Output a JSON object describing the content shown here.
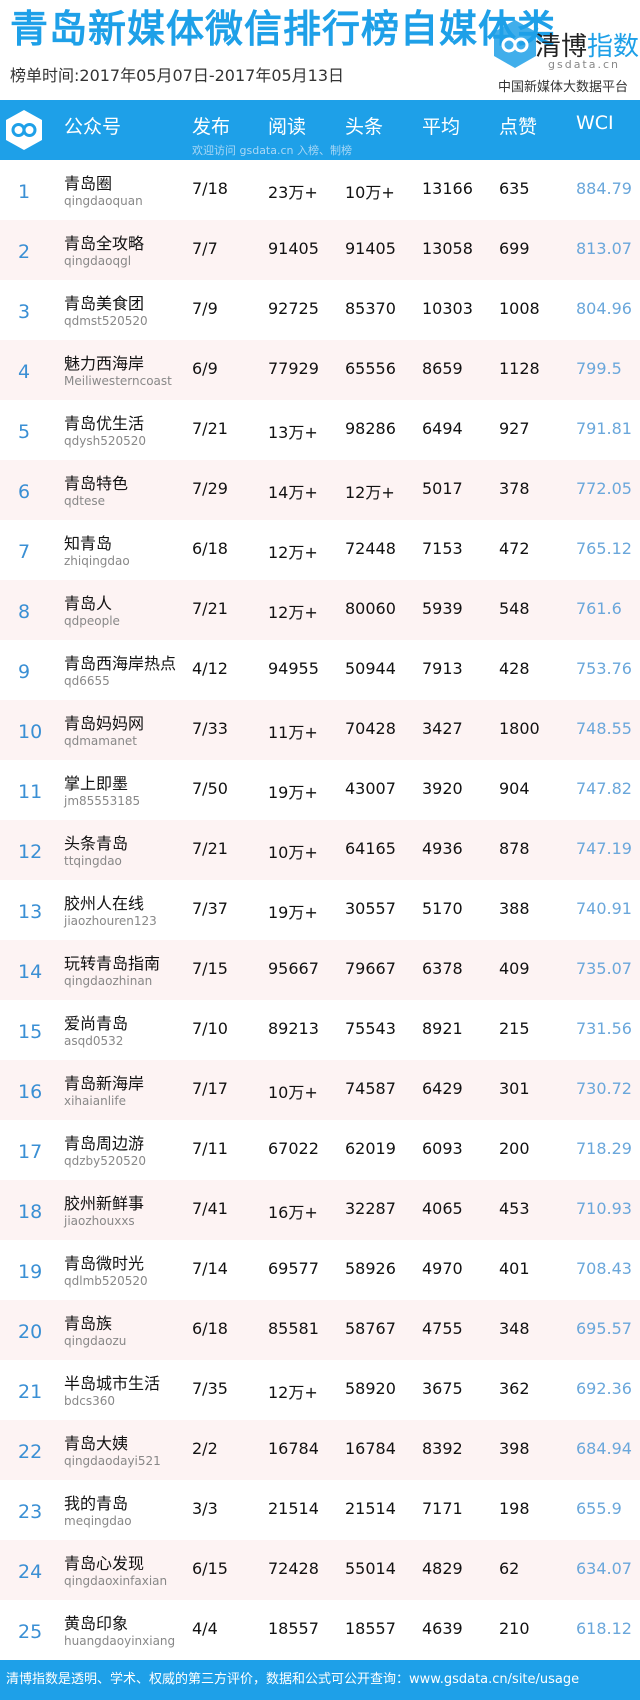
{
  "header": {
    "title": "青岛新媒体微信排行榜自媒体类",
    "date_range": "榜单时间:2017年05月07日-2017年05月13日",
    "brand_name_part1": "清博",
    "brand_name_part2": "指数",
    "brand_domain": "gsdata.cn",
    "brand_sub": "中国新媒体大数据平台"
  },
  "table": {
    "headers": [
      "公众号",
      "发布",
      "阅读",
      "头条",
      "平均",
      "点赞",
      "WCI"
    ],
    "watermark": "欢迎访问 gsdata.cn 入榜、制榜",
    "rows": [
      {
        "rank": "1",
        "name": "青岛圈",
        "id": "qingdaoquan",
        "publish": "7/18",
        "read": "23万+",
        "headline": "10万+",
        "avg": "13166",
        "likes": "635",
        "wci": "884.79"
      },
      {
        "rank": "2",
        "name": "青岛全攻略",
        "id": "qingdaoqgl",
        "publish": "7/7",
        "read": "91405",
        "headline": "91405",
        "avg": "13058",
        "likes": "699",
        "wci": "813.07"
      },
      {
        "rank": "3",
        "name": "青岛美食团",
        "id": "qdmst520520",
        "publish": "7/9",
        "read": "92725",
        "headline": "85370",
        "avg": "10303",
        "likes": "1008",
        "wci": "804.96"
      },
      {
        "rank": "4",
        "name": "魅力西海岸",
        "id": "Meiliwesterncoast",
        "publish": "6/9",
        "read": "77929",
        "headline": "65556",
        "avg": "8659",
        "likes": "1128",
        "wci": "799.5"
      },
      {
        "rank": "5",
        "name": "青岛优生活",
        "id": "qdysh520520",
        "publish": "7/21",
        "read": "13万+",
        "headline": "98286",
        "avg": "6494",
        "likes": "927",
        "wci": "791.81"
      },
      {
        "rank": "6",
        "name": "青岛特色",
        "id": "qdtese",
        "publish": "7/29",
        "read": "14万+",
        "headline": "12万+",
        "avg": "5017",
        "likes": "378",
        "wci": "772.05"
      },
      {
        "rank": "7",
        "name": "知青岛",
        "id": "zhiqingdao",
        "publish": "6/18",
        "read": "12万+",
        "headline": "72448",
        "avg": "7153",
        "likes": "472",
        "wci": "765.12"
      },
      {
        "rank": "8",
        "name": "青岛人",
        "id": "qdpeople",
        "publish": "7/21",
        "read": "12万+",
        "headline": "80060",
        "avg": "5939",
        "likes": "548",
        "wci": "761.6"
      },
      {
        "rank": "9",
        "name": "青岛西海岸热点",
        "id": "qd6655",
        "publish": "4/12",
        "read": "94955",
        "headline": "50944",
        "avg": "7913",
        "likes": "428",
        "wci": "753.76"
      },
      {
        "rank": "10",
        "name": "青岛妈妈网",
        "id": "qdmamanet",
        "publish": "7/33",
        "read": "11万+",
        "headline": "70428",
        "avg": "3427",
        "likes": "1800",
        "wci": "748.55"
      },
      {
        "rank": "11",
        "name": "掌上即墨",
        "id": "jm85553185",
        "publish": "7/50",
        "read": "19万+",
        "headline": "43007",
        "avg": "3920",
        "likes": "904",
        "wci": "747.82"
      },
      {
        "rank": "12",
        "name": "头条青岛",
        "id": "ttqingdao",
        "publish": "7/21",
        "read": "10万+",
        "headline": "64165",
        "avg": "4936",
        "likes": "878",
        "wci": "747.19"
      },
      {
        "rank": "13",
        "name": "胶州人在线",
        "id": "jiaozhouren123",
        "publish": "7/37",
        "read": "19万+",
        "headline": "30557",
        "avg": "5170",
        "likes": "388",
        "wci": "740.91"
      },
      {
        "rank": "14",
        "name": "玩转青岛指南",
        "id": "qingdaozhinan",
        "publish": "7/15",
        "read": "95667",
        "headline": "79667",
        "avg": "6378",
        "likes": "409",
        "wci": "735.07"
      },
      {
        "rank": "15",
        "name": "爱尚青岛",
        "id": "asqd0532",
        "publish": "7/10",
        "read": "89213",
        "headline": "75543",
        "avg": "8921",
        "likes": "215",
        "wci": "731.56"
      },
      {
        "rank": "16",
        "name": "青岛新海岸",
        "id": "xihaianlife",
        "publish": "7/17",
        "read": "10万+",
        "headline": "74587",
        "avg": "6429",
        "likes": "301",
        "wci": "730.72"
      },
      {
        "rank": "17",
        "name": "青岛周边游",
        "id": "qdzby520520",
        "publish": "7/11",
        "read": "67022",
        "headline": "62019",
        "avg": "6093",
        "likes": "200",
        "wci": "718.29"
      },
      {
        "rank": "18",
        "name": "胶州新鲜事",
        "id": "jiaozhouxxs",
        "publish": "7/41",
        "read": "16万+",
        "headline": "32287",
        "avg": "4065",
        "likes": "453",
        "wci": "710.93"
      },
      {
        "rank": "19",
        "name": "青岛微时光",
        "id": "qdlmb520520",
        "publish": "7/14",
        "read": "69577",
        "headline": "58926",
        "avg": "4970",
        "likes": "401",
        "wci": "708.43"
      },
      {
        "rank": "20",
        "name": "青岛族",
        "id": "qingdaozu",
        "publish": "6/18",
        "read": "85581",
        "headline": "58767",
        "avg": "4755",
        "likes": "348",
        "wci": "695.57"
      },
      {
        "rank": "21",
        "name": "半岛城市生活",
        "id": "bdcs360",
        "publish": "7/35",
        "read": "12万+",
        "headline": "58920",
        "avg": "3675",
        "likes": "362",
        "wci": "692.36"
      },
      {
        "rank": "22",
        "name": "青岛大姨",
        "id": "qingdaodayi521",
        "publish": "2/2",
        "read": "16784",
        "headline": "16784",
        "avg": "8392",
        "likes": "398",
        "wci": "684.94"
      },
      {
        "rank": "23",
        "name": "我的青岛",
        "id": "meqingdao",
        "publish": "3/3",
        "read": "21514",
        "headline": "21514",
        "avg": "7171",
        "likes": "198",
        "wci": "655.9"
      },
      {
        "rank": "24",
        "name": "青岛心发现",
        "id": "qingdaoxinfaxian",
        "publish": "6/15",
        "read": "72428",
        "headline": "55014",
        "avg": "4829",
        "likes": "62",
        "wci": "634.07"
      },
      {
        "rank": "25",
        "name": "黄岛印象",
        "id": "huangdaoyinxiang",
        "publish": "4/4",
        "read": "18557",
        "headline": "18557",
        "avg": "4639",
        "likes": "210",
        "wci": "618.12"
      }
    ]
  },
  "footer": {
    "text": "清博指数是透明、学术、权威的第三方评价，数据和公式可公开查询：www.gsdata.cn/site/usage"
  }
}
